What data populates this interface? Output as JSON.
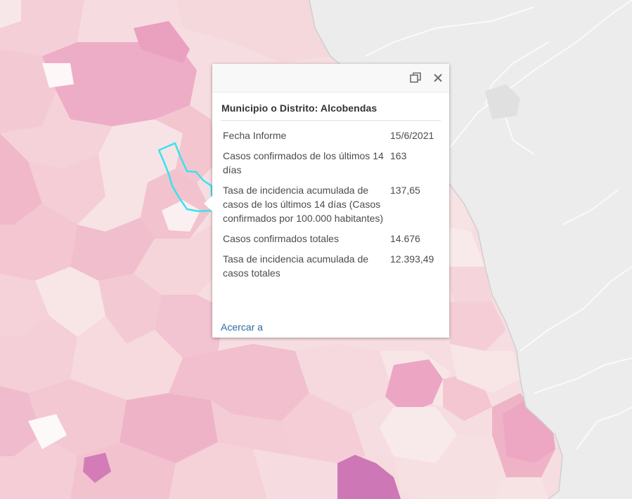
{
  "popup": {
    "title": "Municipio o Distrito: Alcobendas",
    "dock_icon": "dock-icon",
    "close_icon": "close-icon",
    "rows": [
      {
        "label": "Fecha Informe",
        "value": "15/6/2021"
      },
      {
        "label": "Casos confirmados de los últimos 14 días",
        "value": "163"
      },
      {
        "label": "Tasa de incidencia acumulada de casos de los últimos 14 días (Casos confirmados por 100.000 habitantes)",
        "value": "137,65"
      },
      {
        "label": "Casos confirmados totales",
        "value": "14.676"
      },
      {
        "label": "Tasa de incidencia acumulada de casos totales",
        "value": "12.393,49"
      }
    ],
    "zoom_label": "Acercar a"
  },
  "map": {
    "basemap_color": "#ececec",
    "selection_color": "#35e4ee",
    "choropleth_colors": [
      "#f7e4e4",
      "#f5d3d8",
      "#f3c6d2",
      "#efb4c8",
      "#eaa0bf",
      "#d47cb8"
    ]
  }
}
